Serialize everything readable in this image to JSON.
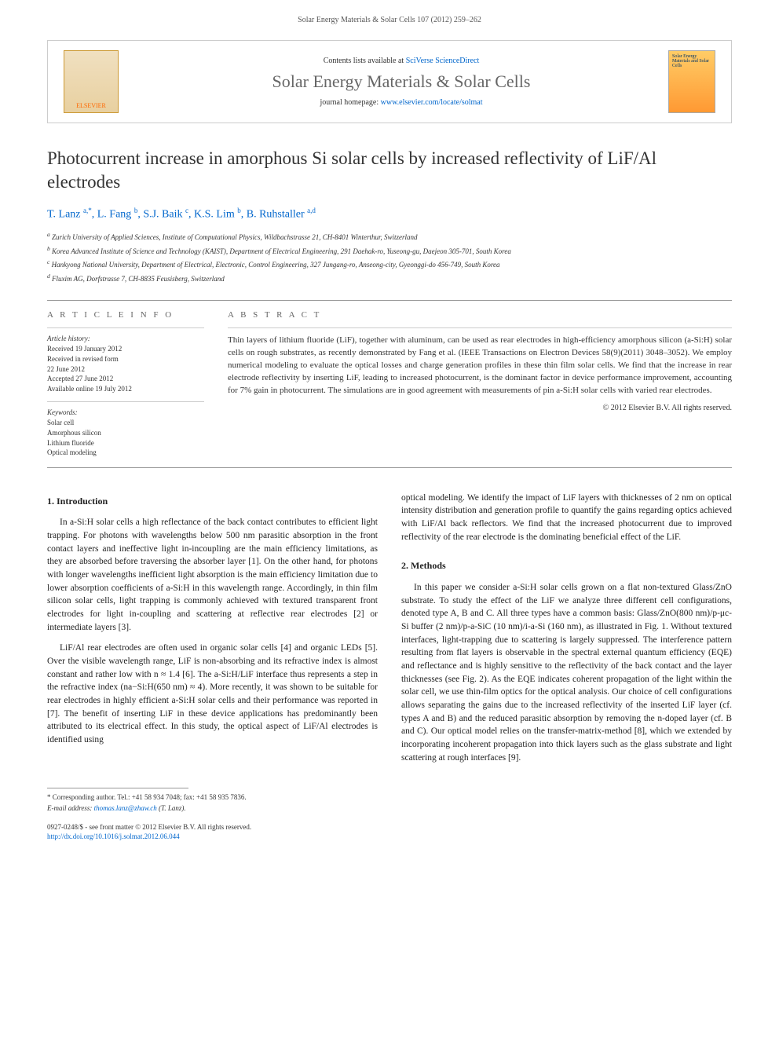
{
  "header": {
    "citation": "Solar Energy Materials & Solar Cells 107 (2012) 259–262"
  },
  "journal_box": {
    "publisher": "ELSEVIER",
    "contents_prefix": "Contents lists available at ",
    "contents_link": "SciVerse ScienceDirect",
    "journal_name": "Solar Energy Materials & Solar Cells",
    "homepage_prefix": "journal homepage: ",
    "homepage_url": "www.elsevier.com/locate/solmat",
    "cover_text": "Solar Energy Materials and Solar Cells"
  },
  "title": "Photocurrent increase in amorphous Si solar cells by increased reflectivity of LiF/Al electrodes",
  "authors_html": "T. Lanz <sup>a,*</sup>, L. Fang <sup>b</sup>, S.J. Baik <sup>c</sup>, K.S. Lim <sup>b</sup>, B. Ruhstaller <sup>a,d</sup>",
  "affiliations": [
    "a Zurich University of Applied Sciences, Institute of Computational Physics, Wildbachstrasse 21, CH-8401 Winterthur, Switzerland",
    "b Korea Advanced Institute of Science and Technology (KAIST), Department of Electrical Engineering, 291 Daehak-ro, Yuseong-gu, Daejeon 305-701, South Korea",
    "c Hankyong National University, Department of Electrical, Electronic, Control Engineering, 327 Jungang-ro, Anseong-city, Gyeonggi-do 456-749, South Korea",
    "d Fluxim AG, Dorfstrasse 7, CH-8835 Feusisberg, Switzerland"
  ],
  "article_info": {
    "heading": "A R T I C L E  I N F O",
    "history_label": "Article history:",
    "history": [
      "Received 19 January 2012",
      "Received in revised form",
      "22 June 2012",
      "Accepted 27 June 2012",
      "Available online 19 July 2012"
    ],
    "keywords_label": "Keywords:",
    "keywords": [
      "Solar cell",
      "Amorphous silicon",
      "Lithium fluoride",
      "Optical modeling"
    ]
  },
  "abstract": {
    "heading": "A B S T R A C T",
    "text": "Thin layers of lithium fluoride (LiF), together with aluminum, can be used as rear electrodes in high-efficiency amorphous silicon (a-Si:H) solar cells on rough substrates, as recently demonstrated by Fang et al. (IEEE Transactions on Electron Devices 58(9)(2011) 3048–3052). We employ numerical modeling to evaluate the optical losses and charge generation profiles in these thin film solar cells. We find that the increase in rear electrode reflectivity by inserting LiF, leading to increased photocurrent, is the dominant factor in device performance improvement, accounting for 7% gain in photocurrent. The simulations are in good agreement with measurements of pin a-Si:H solar cells with varied rear electrodes.",
    "copyright": "© 2012 Elsevier B.V. All rights reserved."
  },
  "sections": {
    "intro_heading": "1. Introduction",
    "intro_p1": "In a-Si:H solar cells a high reflectance of the back contact contributes to efficient light trapping. For photons with wavelengths below 500 nm parasitic absorption in the front contact layers and ineffective light in-incoupling are the main efficiency limitations, as they are absorbed before traversing the absorber layer [1]. On the other hand, for photons with longer wavelengths inefficient light absorption is the main efficiency limitation due to lower absorption coefficients of a-Si:H in this wavelength range. Accordingly, in thin film silicon solar cells, light trapping is commonly achieved with textured transparent front electrodes for light in-coupling and scattering at reflective rear electrodes [2] or intermediate layers [3].",
    "intro_p2": "LiF/Al rear electrodes are often used in organic solar cells [4] and organic LEDs [5]. Over the visible wavelength range, LiF is non-absorbing and its refractive index is almost constant and rather low with n ≈ 1.4 [6]. The a-Si:H/LiF interface thus represents a step in the refractive index (na−Si:H(650 nm) ≈ 4). More recently, it was shown to be suitable for rear electrodes in highly efficient a-Si:H solar cells and their performance was reported in [7]. The benefit of inserting LiF in these device applications has predominantly been attributed to its electrical effect. In this study, the optical aspect of LiF/Al electrodes is identified using",
    "col2_p1": "optical modeling. We identify the impact of LiF layers with thicknesses of 2 nm on optical intensity distribution and generation profile to quantify the gains regarding optics achieved with LiF/Al back reflectors. We find that the increased photocurrent due to improved reflectivity of the rear electrode is the dominating beneficial effect of the LiF.",
    "methods_heading": "2. Methods",
    "methods_p1": "In this paper we consider a-Si:H solar cells grown on a flat non-textured Glass/ZnO substrate. To study the effect of the LiF we analyze three different cell configurations, denoted type A, B and C. All three types have a common basis: Glass/ZnO(800 nm)/p-μc-Si buffer (2 nm)/p-a-SiC (10 nm)/i-a-Si (160 nm), as illustrated in Fig. 1. Without textured interfaces, light-trapping due to scattering is largely suppressed. The interference pattern resulting from flat layers is observable in the spectral external quantum efficiency (EQE) and reflectance and is highly sensitive to the reflectivity of the back contact and the layer thicknesses (see Fig. 2). As the EQE indicates coherent propagation of the light within the solar cell, we use thin-film optics for the optical analysis. Our choice of cell configurations allows separating the gains due to the increased reflectivity of the inserted LiF layer (cf. types A and B) and the reduced parasitic absorption by removing the n-doped layer (cf. B and C). Our optical model relies on the transfer-matrix-method [8], which we extended by incorporating incoherent propagation into thick layers such as the glass substrate and light scattering at rough interfaces [9]."
  },
  "footer": {
    "corresponding": "* Corresponding author. Tel.: +41 58 934 7048; fax: +41 58 935 7836.",
    "email_label": "E-mail address: ",
    "email": "thomas.lanz@zhaw.ch",
    "email_suffix": " (T. Lanz).",
    "issn": "0927-0248/$ - see front matter © 2012 Elsevier B.V. All rights reserved.",
    "doi_prefix": "http://dx.doi.org/",
    "doi": "10.1016/j.solmat.2012.06.044"
  },
  "colors": {
    "link": "#0066cc",
    "text": "#333333",
    "journal_name": "#666666",
    "border": "#999999"
  },
  "typography": {
    "title_fontsize": 23,
    "body_fontsize": 11.5,
    "abstract_fontsize": 11,
    "meta_fontsize": 9,
    "journal_name_fontsize": 22
  }
}
